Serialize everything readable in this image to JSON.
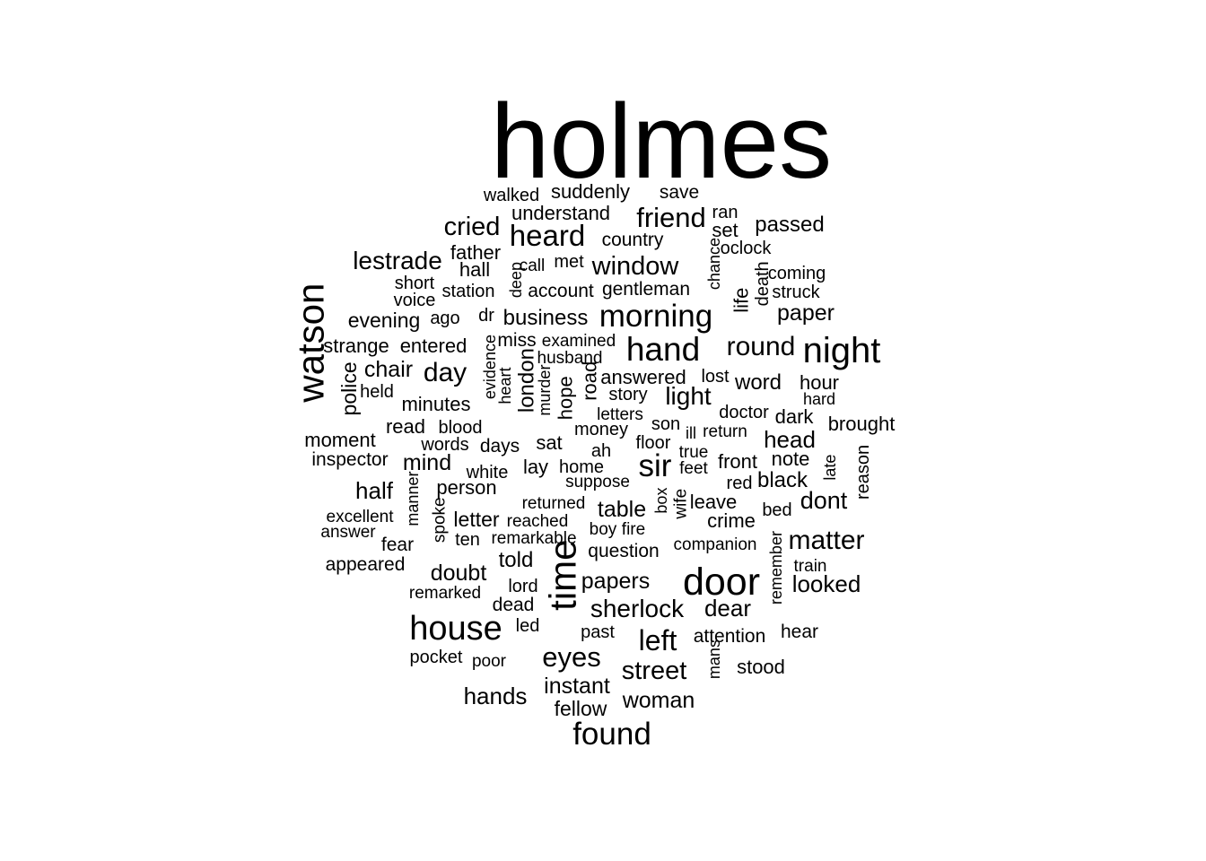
{
  "word_cloud": {
    "text_color": "#000000",
    "background": "#ffffff",
    "words": [
      "holmes",
      "walked",
      "suddenly",
      "save",
      "understand",
      "friend",
      "ran",
      "cried",
      "heard",
      "country",
      "set",
      "passed",
      "oclock",
      "lestrade",
      "father",
      "hall",
      "call",
      "met",
      "window",
      "chance",
      "coming",
      "short",
      "deep",
      "death",
      "struck",
      "station",
      "account",
      "gentleman",
      "voice",
      "life",
      "paper",
      "watson",
      "evening",
      "ago",
      "dr",
      "business",
      "morning",
      "strange",
      "entered",
      "evidence",
      "miss",
      "examined",
      "hand",
      "round",
      "night",
      "husband",
      "police",
      "chair",
      "day",
      "london",
      "answered",
      "lost",
      "held",
      "heart",
      "road",
      "word",
      "hour",
      "minutes",
      "murder",
      "hope",
      "story",
      "light",
      "hard",
      "letters",
      "doctor",
      "dark",
      "read",
      "blood",
      "son",
      "brought",
      "money",
      "ill",
      "return",
      "moment",
      "words",
      "days",
      "sat",
      "ah",
      "floor",
      "true",
      "head",
      "inspector",
      "mind",
      "white",
      "lay",
      "home",
      "sir",
      "feet",
      "front",
      "note",
      "suppose",
      "late",
      "reason",
      "red",
      "black",
      "half",
      "manner",
      "person",
      "returned",
      "box",
      "wife",
      "leave",
      "bed",
      "dont",
      "excellent",
      "table",
      "spoke",
      "letter",
      "reached",
      "crime",
      "answer",
      "boy",
      "fire",
      "fear",
      "ten",
      "remarkable",
      "question",
      "companion",
      "matter",
      "time",
      "appeared",
      "told",
      "remember",
      "train",
      "doubt",
      "door",
      "papers",
      "lord",
      "looked",
      "remarked",
      "dead",
      "sherlock",
      "dear",
      "house",
      "led",
      "past",
      "attention",
      "hear",
      "pocket",
      "poor",
      "eyes",
      "mans",
      "left",
      "stood",
      "street",
      "instant",
      "hands",
      "woman",
      "fellow",
      "found"
    ]
  }
}
